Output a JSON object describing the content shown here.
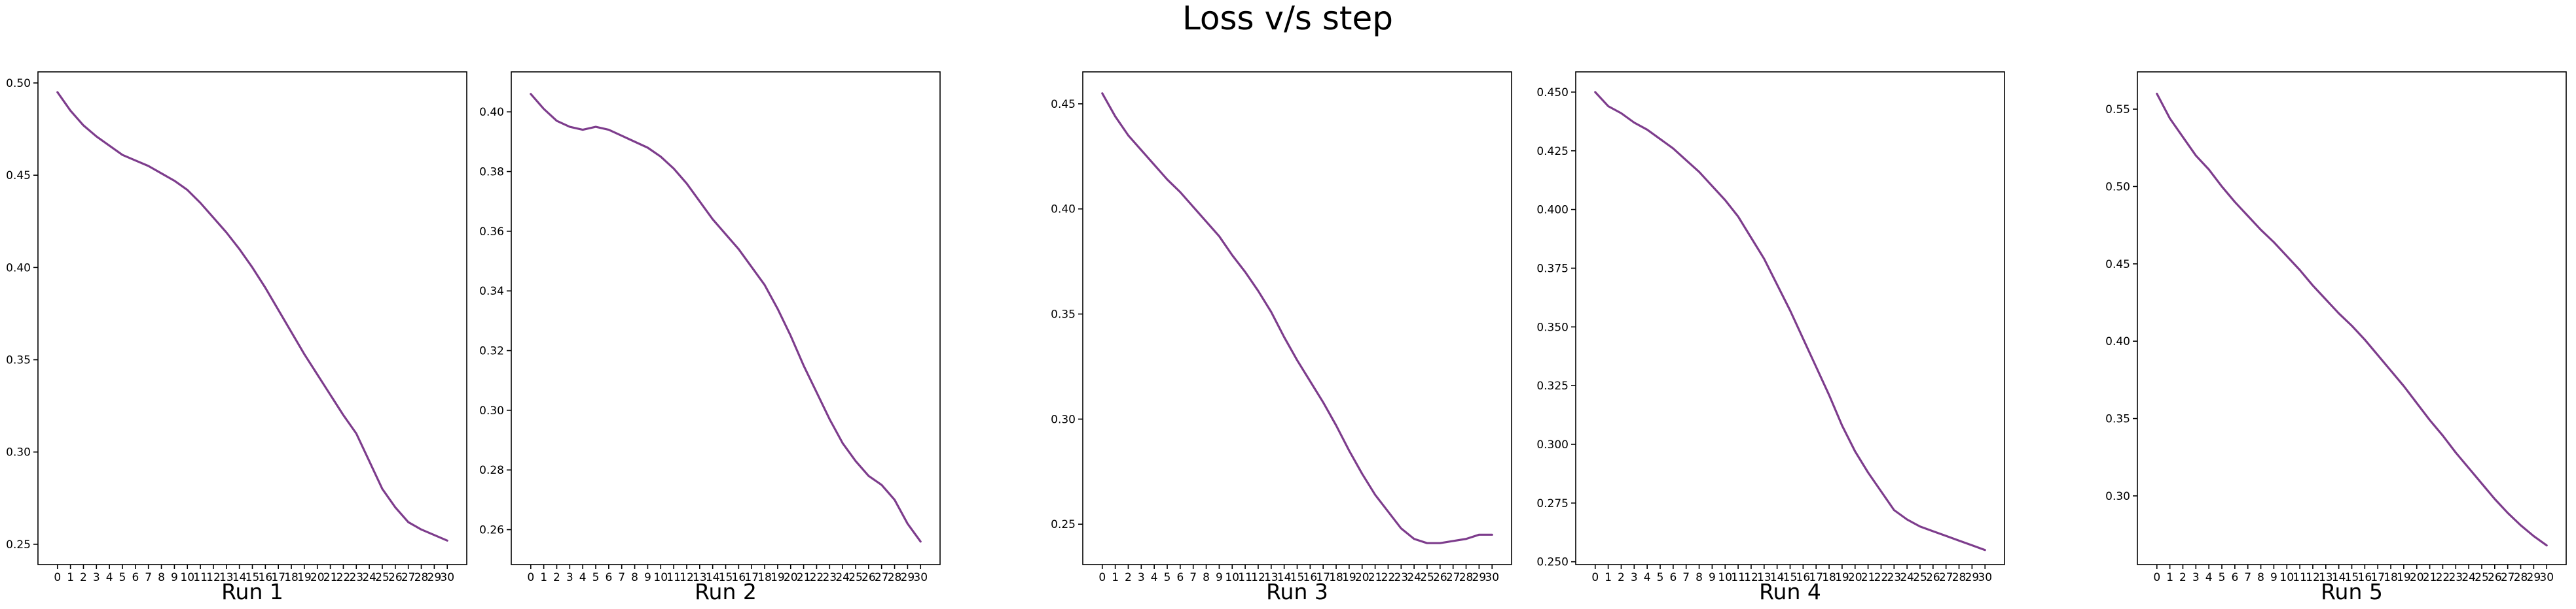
{
  "figure": {
    "title": "Loss v/s step"
  },
  "colors": {
    "line": "#7d3c8c",
    "axis": "#000000",
    "background": "#ffffff"
  },
  "chart_data": [
    {
      "type": "line",
      "xlabel": "Run 1",
      "x": [
        0,
        1,
        2,
        3,
        4,
        5,
        6,
        7,
        8,
        9,
        10,
        11,
        12,
        13,
        14,
        15,
        16,
        17,
        18,
        19,
        20,
        21,
        22,
        23,
        24,
        25,
        26,
        27,
        28,
        29,
        30
      ],
      "values": [
        0.495,
        0.485,
        0.477,
        0.471,
        0.466,
        0.461,
        0.458,
        0.455,
        0.451,
        0.447,
        0.442,
        0.435,
        0.427,
        0.419,
        0.41,
        0.4,
        0.389,
        0.377,
        0.365,
        0.353,
        0.342,
        0.331,
        0.32,
        0.31,
        0.295,
        0.28,
        0.27,
        0.262,
        0.258,
        0.255,
        0.252
      ],
      "ylim": [
        0.239,
        0.506
      ],
      "yticks": [
        0.25,
        0.3,
        0.35,
        0.4,
        0.45,
        0.5
      ],
      "ytick_labels": [
        "0.25",
        "0.30",
        "0.35",
        "0.40",
        "0.45",
        "0.50"
      ]
    },
    {
      "type": "line",
      "xlabel": "Run 2",
      "x": [
        0,
        1,
        2,
        3,
        4,
        5,
        6,
        7,
        8,
        9,
        10,
        11,
        12,
        13,
        14,
        15,
        16,
        17,
        18,
        19,
        20,
        21,
        22,
        23,
        24,
        25,
        26,
        27,
        28,
        29,
        30
      ],
      "values": [
        0.406,
        0.401,
        0.397,
        0.395,
        0.394,
        0.395,
        0.394,
        0.392,
        0.39,
        0.388,
        0.385,
        0.381,
        0.376,
        0.37,
        0.364,
        0.359,
        0.354,
        0.348,
        0.342,
        0.334,
        0.325,
        0.315,
        0.306,
        0.297,
        0.289,
        0.283,
        0.278,
        0.275,
        0.27,
        0.262,
        0.256
      ],
      "ylim": [
        0.2483,
        0.4134
      ],
      "yticks": [
        0.26,
        0.28,
        0.3,
        0.32,
        0.34,
        0.36,
        0.38,
        0.4
      ],
      "ytick_labels": [
        "0.26",
        "0.28",
        "0.30",
        "0.32",
        "0.34",
        "0.36",
        "0.38",
        "0.40"
      ]
    },
    {
      "type": "line",
      "xlabel": "Run 3",
      "x": [
        0,
        1,
        2,
        3,
        4,
        5,
        6,
        7,
        8,
        9,
        10,
        11,
        12,
        13,
        14,
        15,
        16,
        17,
        18,
        19,
        20,
        21,
        22,
        23,
        24,
        25,
        26,
        27,
        28,
        29,
        30
      ],
      "values": [
        0.455,
        0.444,
        0.435,
        0.428,
        0.421,
        0.414,
        0.408,
        0.401,
        0.394,
        0.387,
        0.378,
        0.37,
        0.361,
        0.351,
        0.339,
        0.328,
        0.318,
        0.308,
        0.297,
        0.285,
        0.274,
        0.264,
        0.256,
        0.248,
        0.243,
        0.241,
        0.241,
        0.242,
        0.243,
        0.245,
        0.245
      ],
      "ylim": [
        0.2308,
        0.4652
      ],
      "yticks": [
        0.25,
        0.3,
        0.35,
        0.4,
        0.45
      ],
      "ytick_labels": [
        "0.25",
        "0.30",
        "0.35",
        "0.40",
        "0.45"
      ]
    },
    {
      "type": "line",
      "xlabel": "Run 4",
      "x": [
        0,
        1,
        2,
        3,
        4,
        5,
        6,
        7,
        8,
        9,
        10,
        11,
        12,
        13,
        14,
        15,
        16,
        17,
        18,
        19,
        20,
        21,
        22,
        23,
        24,
        25,
        26,
        27,
        28,
        29,
        30
      ],
      "values": [
        0.45,
        0.444,
        0.441,
        0.437,
        0.434,
        0.43,
        0.426,
        0.421,
        0.416,
        0.41,
        0.404,
        0.397,
        0.388,
        0.379,
        0.368,
        0.357,
        0.345,
        0.333,
        0.321,
        0.308,
        0.297,
        0.288,
        0.28,
        0.272,
        0.268,
        0.265,
        0.263,
        0.261,
        0.259,
        0.257,
        0.255
      ],
      "ylim": [
        0.2488,
        0.4586
      ],
      "yticks": [
        0.25,
        0.275,
        0.3,
        0.325,
        0.35,
        0.375,
        0.4,
        0.425,
        0.45
      ],
      "ytick_labels": [
        "0.250",
        "0.275",
        "0.300",
        "0.325",
        "0.350",
        "0.375",
        "0.400",
        "0.425",
        "0.450"
      ]
    },
    {
      "type": "line",
      "xlabel": "Run 5",
      "x": [
        0,
        1,
        2,
        3,
        4,
        5,
        6,
        7,
        8,
        9,
        10,
        11,
        12,
        13,
        14,
        15,
        16,
        17,
        18,
        19,
        20,
        21,
        22,
        23,
        24,
        25,
        26,
        27,
        28,
        29,
        30
      ],
      "values": [
        0.56,
        0.544,
        0.532,
        0.52,
        0.511,
        0.5,
        0.49,
        0.481,
        0.472,
        0.464,
        0.455,
        0.446,
        0.436,
        0.427,
        0.418,
        0.41,
        0.401,
        0.391,
        0.381,
        0.371,
        0.36,
        0.349,
        0.339,
        0.328,
        0.318,
        0.308,
        0.298,
        0.289,
        0.281,
        0.274,
        0.268
      ],
      "ylim": [
        0.2556,
        0.5741
      ],
      "yticks": [
        0.3,
        0.35,
        0.4,
        0.45,
        0.5,
        0.55
      ],
      "ytick_labels": [
        "0.30",
        "0.35",
        "0.40",
        "0.45",
        "0.50",
        "0.55"
      ]
    }
  ]
}
